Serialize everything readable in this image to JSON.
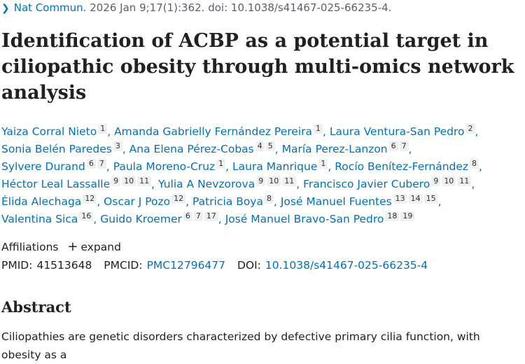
{
  "citation": {
    "journal": "Nat Commun.",
    "details": "2026 Jan 9;17(1):362. doi: 10.1038/s41467-025-66235-4."
  },
  "title": "Identification of ACBP as a potential target in ciliopathic obesity through multi-omics network analysis",
  "authors": [
    {
      "name": "Yaiza Corral Nieto",
      "sups": [
        "1"
      ]
    },
    {
      "name": "Amanda Gabrielly Fernández Pereira",
      "sups": [
        "1"
      ]
    },
    {
      "name": "Laura Ventura-San Pedro",
      "sups": [
        "2"
      ]
    },
    {
      "name": "Sonia Belén Paredes",
      "sups": [
        "3"
      ]
    },
    {
      "name": "Ana Elena Pérez-Cobas",
      "sups": [
        "4",
        "5"
      ]
    },
    {
      "name": "María Perez-Lanzon",
      "sups": [
        "6",
        "7"
      ]
    },
    {
      "name": "Sylvere Durand",
      "sups": [
        "6",
        "7"
      ]
    },
    {
      "name": "Paula Moreno-Cruz",
      "sups": [
        "1"
      ]
    },
    {
      "name": "Laura Manrique",
      "sups": [
        "1"
      ]
    },
    {
      "name": "Rocío Benítez-Fernández",
      "sups": [
        "8"
      ]
    },
    {
      "name": "Héctor Leal Lassalle",
      "sups": [
        "9",
        "10",
        "11"
      ]
    },
    {
      "name": "Yulia A Nevzorova",
      "sups": [
        "9",
        "10",
        "11"
      ]
    },
    {
      "name": "Francisco Javier Cubero",
      "sups": [
        "9",
        "10",
        "11"
      ]
    },
    {
      "name": "Élida Alechaga",
      "sups": [
        "12"
      ]
    },
    {
      "name": "Oscar J Pozo",
      "sups": [
        "12"
      ]
    },
    {
      "name": "Patricia Boya",
      "sups": [
        "8"
      ]
    },
    {
      "name": "José Manuel Fuentes",
      "sups": [
        "13",
        "14",
        "15"
      ]
    },
    {
      "name": "Valentina Sica",
      "sups": [
        "16"
      ]
    },
    {
      "name": "Guido Kroemer",
      "sups": [
        "6",
        "7",
        "17"
      ]
    },
    {
      "name": "José Manuel Bravo-San Pedro",
      "sups": [
        "18",
        "19"
      ]
    }
  ],
  "affiliations": {
    "label": "Affiliations",
    "expand_label": "expand"
  },
  "ids": {
    "pmid_label": "PMID:",
    "pmid": "41513648",
    "pmcid_label": "PMCID:",
    "pmcid": "PMC12796477",
    "doi_label": "DOI:",
    "doi": "10.1038/s41467-025-66235-4"
  },
  "abstract": {
    "heading": "Abstract",
    "text": "Ciliopathies are genetic disorders characterized by defective primary cilia function, with obesity as a"
  },
  "colors": {
    "link": "#0071bc",
    "text": "#212121",
    "sup_bg": "#eef0f1"
  }
}
